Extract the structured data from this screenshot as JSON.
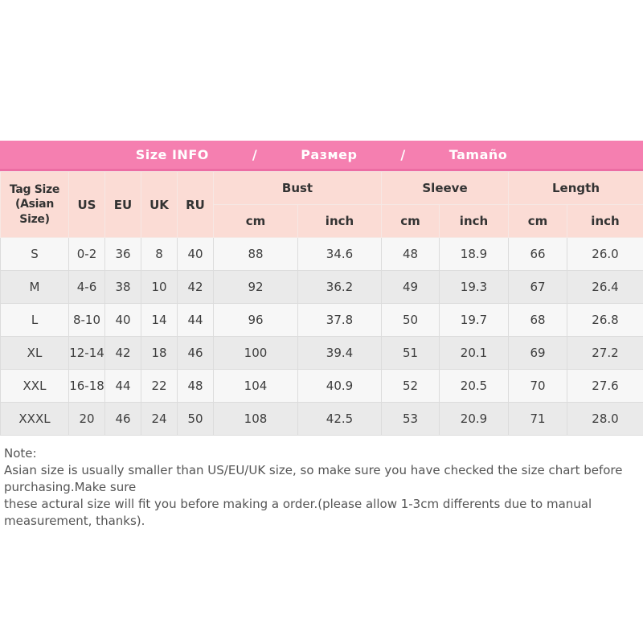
{
  "title_bar": {
    "items": [
      "Size INFO",
      "/",
      "Размер",
      "/",
      "Tamaño"
    ],
    "background_color": "#f57fb0",
    "text_color": "#ffffff"
  },
  "table": {
    "header": {
      "tag_size": "Tag Size\n(Asian Size)",
      "regions": [
        "US",
        "EU",
        "UK",
        "RU"
      ],
      "groups": [
        "Bust",
        "Sleeve",
        "Length"
      ],
      "units": [
        "cm",
        "inch",
        "cm",
        "inch",
        "cm",
        "inch"
      ]
    },
    "rows": [
      [
        "S",
        "0-2",
        "36",
        "8",
        "40",
        "88",
        "34.6",
        "48",
        "18.9",
        "66",
        "26.0"
      ],
      [
        "M",
        "4-6",
        "38",
        "10",
        "42",
        "92",
        "36.2",
        "49",
        "19.3",
        "67",
        "26.4"
      ],
      [
        "L",
        "8-10",
        "40",
        "14",
        "44",
        "96",
        "37.8",
        "50",
        "19.7",
        "68",
        "26.8"
      ],
      [
        "XL",
        "12-14",
        "42",
        "18",
        "46",
        "100",
        "39.4",
        "51",
        "20.1",
        "69",
        "27.2"
      ],
      [
        "XXL",
        "16-18",
        "44",
        "22",
        "48",
        "104",
        "40.9",
        "52",
        "20.5",
        "70",
        "27.6"
      ],
      [
        "XXXL",
        "20",
        "46",
        "24",
        "50",
        "108",
        "42.5",
        "53",
        "20.9",
        "71",
        "28.0"
      ]
    ],
    "stripe_colors": {
      "odd": "#f7f7f7",
      "even": "#eaeaea"
    },
    "header_background": "#fbdcd5"
  },
  "note": {
    "title": "Note:",
    "lines": [
      "Asian size is usually smaller than US/EU/UK size, so make sure you have checked the size chart before purchasing.Make sure",
      "these actural size will fit you before making a order.(please allow 1-3cm differents due to manual measurement, thanks)."
    ]
  }
}
